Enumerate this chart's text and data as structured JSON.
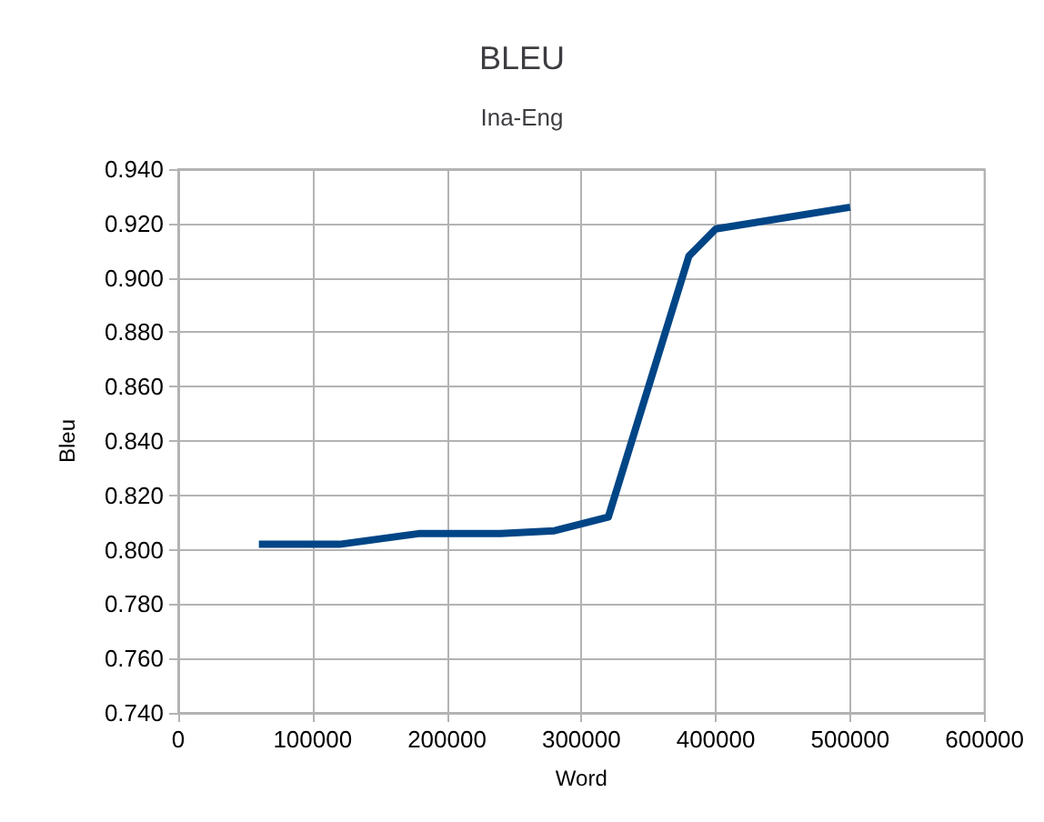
{
  "chart_data": {
    "type": "line",
    "title": "BLEU",
    "subtitle": "Ina-Eng",
    "xlabel": "Word",
    "ylabel": "Bleu",
    "x": [
      60000,
      120000,
      180000,
      240000,
      280000,
      320000,
      380000,
      400000,
      500000
    ],
    "series": [
      {
        "color": "#004586",
        "values": [
          0.802,
          0.802,
          0.806,
          0.806,
          0.807,
          0.812,
          0.908,
          0.918,
          0.926
        ]
      }
    ],
    "xlim": [
      0,
      600000
    ],
    "xticks": [
      0,
      100000,
      200000,
      300000,
      400000,
      500000,
      600000
    ],
    "ylim": [
      0.74,
      0.94
    ],
    "yticks": [
      {
        "value": 0.74,
        "label": "0.740"
      },
      {
        "value": 0.76,
        "label": "0.760"
      },
      {
        "value": 0.78,
        "label": "0.780"
      },
      {
        "value": 0.8,
        "label": "0.800"
      },
      {
        "value": 0.82,
        "label": "0.820"
      },
      {
        "value": 0.84,
        "label": "0.840"
      },
      {
        "value": 0.86,
        "label": "0.860"
      },
      {
        "value": 0.88,
        "label": "0.880"
      },
      {
        "value": 0.9,
        "label": "0.900"
      },
      {
        "value": 0.92,
        "label": "0.920"
      },
      {
        "value": 0.94,
        "label": "0.940"
      }
    ],
    "grid": true,
    "marker": "none",
    "line_style": "solid"
  }
}
